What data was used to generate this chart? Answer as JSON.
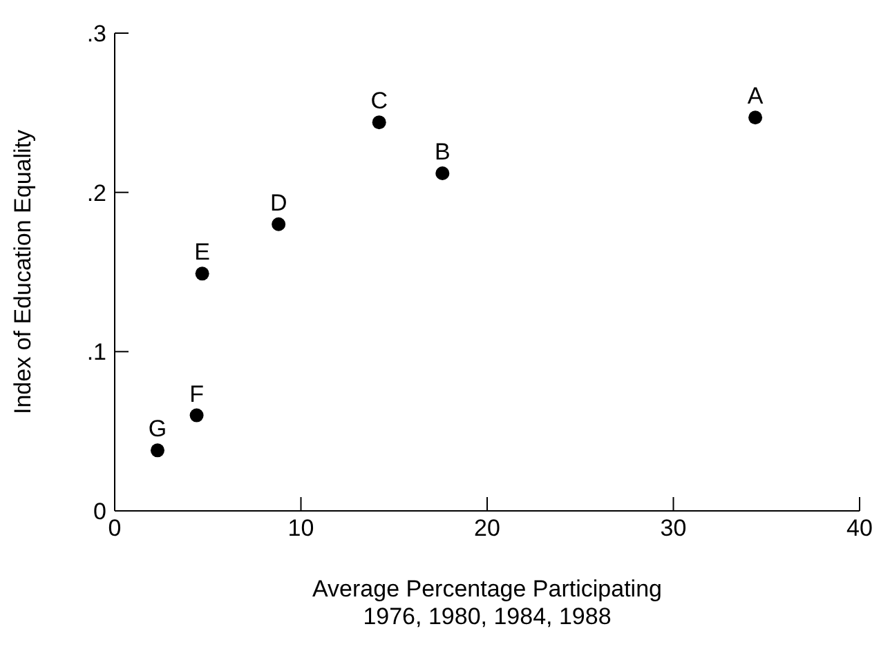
{
  "chart_data": {
    "type": "scatter",
    "xlabel": "Average Percentage Participating\n1976, 1980, 1984, 1988",
    "ylabel": "Index of Education Equality",
    "x": [
      34.4,
      17.6,
      14.2,
      8.8,
      4.7,
      4.4,
      2.3
    ],
    "series": [
      {
        "color": "#000000",
        "values": [
          0.247,
          0.212,
          0.244,
          0.18,
          0.149,
          0.06,
          0.038
        ]
      }
    ],
    "annotations": [
      {
        "text": "A",
        "x": 34.4,
        "y": 0.247
      },
      {
        "text": "B",
        "x": 17.6,
        "y": 0.212
      },
      {
        "text": "C",
        "x": 14.2,
        "y": 0.244
      },
      {
        "text": "D",
        "x": 8.8,
        "y": 0.18
      },
      {
        "text": "E",
        "x": 4.7,
        "y": 0.149
      },
      {
        "text": "F",
        "x": 4.4,
        "y": 0.06
      },
      {
        "text": "G",
        "x": 2.3,
        "y": 0.038
      }
    ],
    "xlim": [
      0,
      40
    ],
    "xticks": [
      0,
      10,
      20,
      30,
      40
    ],
    "ylim": [
      0,
      0.3
    ],
    "yticks": [
      {
        "value": 0,
        "label": "0"
      },
      {
        "value": 0.1,
        "label": ".1"
      },
      {
        "value": 0.2,
        "label": ".2"
      },
      {
        "value": 0.3,
        "label": ".3"
      }
    ],
    "grid": false,
    "marker": "circle"
  }
}
